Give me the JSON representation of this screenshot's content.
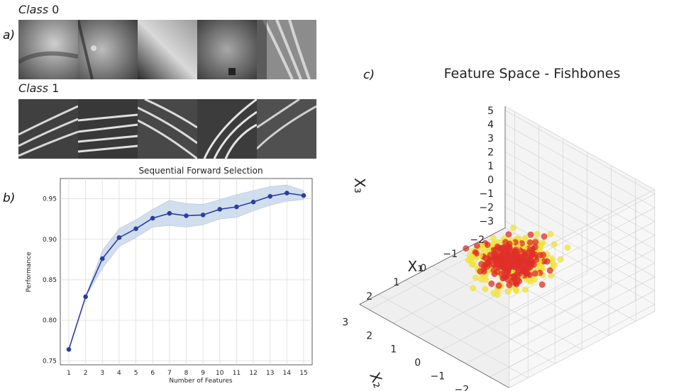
{
  "panels": {
    "a": "a)",
    "b": "b)",
    "c": "c)",
    "class0_word": "Class",
    "class0_num": " 0",
    "class1_word": "Class",
    "class1_num": " 1"
  },
  "chart_data": [
    {
      "type": "line",
      "title": "Sequential Forward Selection",
      "xlabel": "Number of Features",
      "ylabel": "Performance",
      "x": [
        1,
        2,
        3,
        4,
        5,
        6,
        7,
        8,
        9,
        10,
        11,
        12,
        13,
        14,
        15
      ],
      "y": [
        0.764,
        0.829,
        0.876,
        0.902,
        0.913,
        0.926,
        0.932,
        0.929,
        0.93,
        0.937,
        0.94,
        0.946,
        0.953,
        0.957,
        0.954
      ],
      "band_upper": [
        0.764,
        0.829,
        0.886,
        0.913,
        0.924,
        0.937,
        0.948,
        0.944,
        0.943,
        0.949,
        0.955,
        0.96,
        0.965,
        0.967,
        0.96
      ],
      "band_lower": [
        0.764,
        0.829,
        0.864,
        0.891,
        0.902,
        0.915,
        0.917,
        0.915,
        0.918,
        0.925,
        0.927,
        0.935,
        0.942,
        0.947,
        0.949
      ],
      "ylim": [
        0.745,
        0.975
      ],
      "yticks": [
        "0.75",
        "0.80",
        "0.85",
        "0.90",
        "0.95"
      ],
      "xticks": [
        "1",
        "2",
        "3",
        "4",
        "5",
        "6",
        "7",
        "8",
        "9",
        "10",
        "11",
        "12",
        "13",
        "14",
        "15"
      ],
      "grid": true,
      "colors": {
        "line": "#2b3fa0",
        "band": "#c6d6ea"
      }
    },
    {
      "type": "scatter",
      "title": "Feature Space - Fishbones",
      "xlabel": "X₁",
      "ylabel": "X₂",
      "zlabel": "X₃",
      "x_ticks": [
        "2",
        "1",
        "0",
        "−1",
        "−2"
      ],
      "y_ticks": [
        "−2",
        "−1",
        "0",
        "1",
        "2",
        "3"
      ],
      "z_ticks": [
        "5",
        "4",
        "3",
        "2",
        "1",
        "0",
        "−1",
        "−2",
        "−3"
      ],
      "series": [
        {
          "class": 0,
          "color": "#f2e23a",
          "center": [
            0.5,
            -0.5,
            1.2
          ],
          "spread": [
            1.4,
            1.2,
            1.2
          ],
          "count": 320
        },
        {
          "class": 1,
          "color": "#e0302a",
          "center": [
            -0.6,
            0.8,
            -1.2
          ],
          "spread": [
            1.0,
            1.1,
            1.0
          ],
          "count": 300
        }
      ]
    }
  ]
}
